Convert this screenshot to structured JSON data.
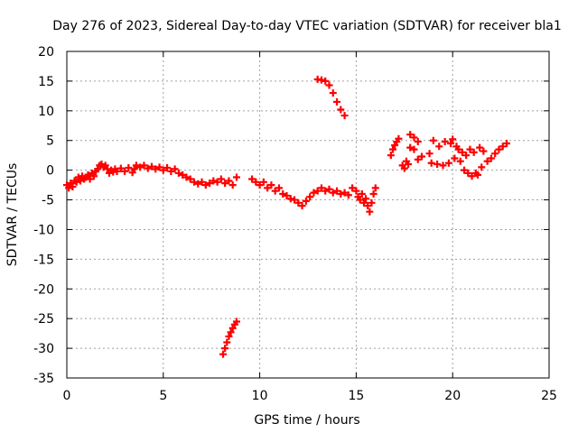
{
  "chart_data": {
    "type": "scatter",
    "title": "Day 276 of 2023, Sidereal Day-to-day VTEC variation (SDTVAR) for receiver bla1",
    "xlabel": "GPS time / hours",
    "ylabel": "SDTVAR / TECUs",
    "xlim": [
      0,
      25
    ],
    "ylim": [
      -35,
      20
    ],
    "xticks": [
      0,
      5,
      10,
      15,
      20,
      25
    ],
    "yticks": [
      20,
      15,
      10,
      5,
      0,
      -5,
      -10,
      -15,
      -20,
      -25,
      -30,
      -35
    ],
    "grid": true,
    "legend": "none",
    "marker_color": "#ff0000",
    "marker": "plus",
    "series": [
      {
        "name": "segment-main-1",
        "points": [
          [
            0.0,
            -2.5
          ],
          [
            0.1,
            -3.0
          ],
          [
            0.2,
            -2.2
          ],
          [
            0.3,
            -2.8
          ],
          [
            0.4,
            -1.8
          ],
          [
            0.5,
            -2.0
          ],
          [
            0.6,
            -1.2
          ],
          [
            0.7,
            -1.8
          ],
          [
            0.8,
            -1.0
          ],
          [
            0.9,
            -1.5
          ],
          [
            1.0,
            -1.2
          ],
          [
            1.1,
            -0.8
          ],
          [
            1.2,
            -1.5
          ],
          [
            1.3,
            -0.5
          ],
          [
            1.4,
            -1.0
          ],
          [
            1.5,
            -0.2
          ],
          [
            1.6,
            0.2
          ],
          [
            1.7,
            0.8
          ],
          [
            1.8,
            1.0
          ],
          [
            1.9,
            0.5
          ],
          [
            2.0,
            0.8
          ],
          [
            2.1,
            0.2
          ],
          [
            2.2,
            -0.5
          ],
          [
            2.3,
            0.0
          ],
          [
            2.4,
            -0.3
          ],
          [
            2.5,
            0.2
          ],
          [
            2.6,
            -0.2
          ],
          [
            2.8,
            0.3
          ],
          [
            3.0,
            -0.2
          ],
          [
            3.2,
            0.4
          ],
          [
            3.4,
            -0.4
          ],
          [
            3.5,
            0.2
          ],
          [
            3.6,
            0.8
          ],
          [
            3.8,
            0.5
          ],
          [
            4.0,
            0.8
          ],
          [
            4.2,
            0.3
          ],
          [
            4.4,
            0.6
          ],
          [
            4.6,
            0.2
          ],
          [
            4.8,
            0.5
          ],
          [
            5.0,
            0.0
          ],
          [
            5.2,
            0.4
          ],
          [
            5.4,
            -0.2
          ],
          [
            5.6,
            0.2
          ],
          [
            5.8,
            -0.5
          ],
          [
            6.0,
            -0.8
          ],
          [
            6.2,
            -1.2
          ],
          [
            6.4,
            -1.5
          ],
          [
            6.6,
            -2.0
          ],
          [
            6.8,
            -2.3
          ],
          [
            7.0,
            -2.0
          ],
          [
            7.2,
            -2.5
          ],
          [
            7.4,
            -2.2
          ],
          [
            7.6,
            -1.8
          ],
          [
            7.8,
            -2.0
          ],
          [
            8.0,
            -1.5
          ],
          [
            8.2,
            -2.2
          ],
          [
            8.4,
            -1.8
          ],
          [
            8.6,
            -2.5
          ],
          [
            8.8,
            -1.2
          ]
        ]
      },
      {
        "name": "segment-negative-arc",
        "points": [
          [
            8.1,
            -31.0
          ],
          [
            8.2,
            -30.0
          ],
          [
            8.3,
            -29.0
          ],
          [
            8.4,
            -28.0
          ],
          [
            8.5,
            -27.3
          ],
          [
            8.6,
            -26.6
          ],
          [
            8.7,
            -26.0
          ],
          [
            8.8,
            -25.5
          ]
        ]
      },
      {
        "name": "segment-main-2",
        "points": [
          [
            9.6,
            -1.5
          ],
          [
            9.8,
            -2.0
          ],
          [
            10.0,
            -2.5
          ],
          [
            10.2,
            -2.0
          ],
          [
            10.4,
            -3.0
          ],
          [
            10.6,
            -2.5
          ],
          [
            10.8,
            -3.5
          ],
          [
            11.0,
            -3.0
          ],
          [
            11.2,
            -4.0
          ],
          [
            11.4,
            -4.3
          ],
          [
            11.6,
            -4.8
          ],
          [
            11.8,
            -5.0
          ],
          [
            12.0,
            -5.5
          ],
          [
            12.2,
            -6.0
          ],
          [
            12.4,
            -5.2
          ],
          [
            12.6,
            -4.5
          ],
          [
            12.8,
            -3.8
          ],
          [
            13.0,
            -3.5
          ],
          [
            13.2,
            -3.0
          ],
          [
            13.4,
            -3.5
          ],
          [
            13.6,
            -3.2
          ],
          [
            13.8,
            -3.8
          ],
          [
            14.0,
            -3.5
          ],
          [
            14.2,
            -4.0
          ],
          [
            14.4,
            -3.8
          ],
          [
            14.6,
            -4.2
          ],
          [
            14.8,
            -3.0
          ],
          [
            15.0,
            -3.5
          ],
          [
            15.1,
            -4.5
          ],
          [
            15.2,
            -5.0
          ],
          [
            15.3,
            -4.0
          ],
          [
            15.4,
            -5.5
          ],
          [
            15.5,
            -4.8
          ],
          [
            15.6,
            -6.0
          ],
          [
            15.7,
            -7.0
          ],
          [
            15.8,
            -5.5
          ],
          [
            15.9,
            -4.0
          ],
          [
            16.0,
            -3.0
          ]
        ]
      },
      {
        "name": "segment-positive-arc",
        "points": [
          [
            13.0,
            15.3
          ],
          [
            13.2,
            15.2
          ],
          [
            13.4,
            15.0
          ],
          [
            13.6,
            14.3
          ],
          [
            13.8,
            13.0
          ],
          [
            14.0,
            11.5
          ],
          [
            14.2,
            10.2
          ],
          [
            14.4,
            9.2
          ]
        ]
      },
      {
        "name": "segment-late",
        "points": [
          [
            16.8,
            2.5
          ],
          [
            16.9,
            3.5
          ],
          [
            17.0,
            4.2
          ],
          [
            17.1,
            4.8
          ],
          [
            17.2,
            5.3
          ],
          [
            17.4,
            0.8
          ],
          [
            17.5,
            0.3
          ],
          [
            17.6,
            1.5
          ],
          [
            17.7,
            1.0
          ],
          [
            17.8,
            3.8
          ],
          [
            17.8,
            6.0
          ],
          [
            18.0,
            5.5
          ],
          [
            18.0,
            3.5
          ],
          [
            18.2,
            4.8
          ],
          [
            18.2,
            1.8
          ],
          [
            18.4,
            2.3
          ],
          [
            18.8,
            2.8
          ],
          [
            18.9,
            1.2
          ],
          [
            19.0,
            5.0
          ],
          [
            19.2,
            1.0
          ],
          [
            19.3,
            4.0
          ],
          [
            19.5,
            0.8
          ],
          [
            19.6,
            4.8
          ],
          [
            19.8,
            1.2
          ],
          [
            19.9,
            4.5
          ],
          [
            20.0,
            5.2
          ],
          [
            20.1,
            2.0
          ],
          [
            20.2,
            4.0
          ],
          [
            20.3,
            3.5
          ],
          [
            20.4,
            1.5
          ],
          [
            20.5,
            3.0
          ],
          [
            20.6,
            0.0
          ],
          [
            20.7,
            2.5
          ],
          [
            20.8,
            -0.5
          ],
          [
            20.9,
            3.5
          ],
          [
            21.0,
            -1.0
          ],
          [
            21.1,
            3.0
          ],
          [
            21.2,
            -0.5
          ],
          [
            21.3,
            -0.8
          ],
          [
            21.4,
            3.8
          ],
          [
            21.5,
            0.5
          ],
          [
            21.6,
            3.2
          ],
          [
            21.8,
            1.5
          ],
          [
            22.0,
            2.0
          ],
          [
            22.2,
            2.8
          ],
          [
            22.4,
            3.5
          ],
          [
            22.6,
            4.0
          ],
          [
            22.8,
            4.5
          ]
        ]
      }
    ]
  }
}
